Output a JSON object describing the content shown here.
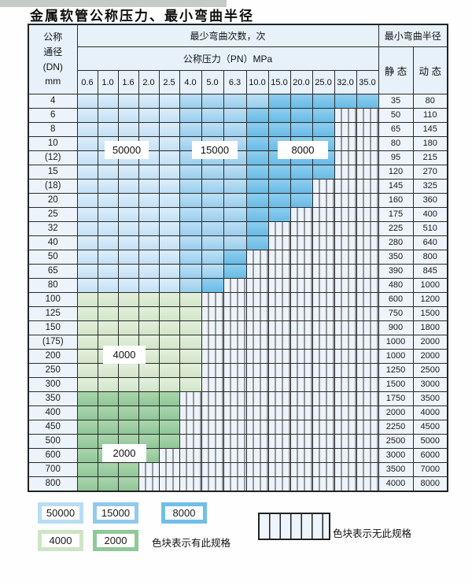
{
  "page": {
    "title": "金属软管公称压力、最小弯曲半径"
  },
  "table": {
    "corner_header": "公称\n通径\n(DN)\nmm",
    "bend_cycles_header": "最少弯曲次数，次",
    "pressure_header": "公称压力（PN）MPa",
    "radius_header": "最小弯曲半径",
    "static_label": "静 态",
    "dynamic_label": "动 态",
    "pressure_columns": [
      "0.6",
      "1.0",
      "1.6",
      "2.0",
      "2.5",
      "4.0",
      "5.0",
      "6.3",
      "10.0",
      "15.0",
      "20.0",
      "25.0",
      "32.0",
      "35.0"
    ],
    "rows": [
      {
        "dn": "4",
        "cells": "LLLLLMMMMDDDDD",
        "static": "35",
        "dynamic": "80"
      },
      {
        "dn": "6",
        "cells": "LLLLLMMMDDDDXX",
        "static": "50",
        "dynamic": "110"
      },
      {
        "dn": "8",
        "cells": "LLLLLMMMDDDDXX",
        "static": "65",
        "dynamic": "145"
      },
      {
        "dn": "10",
        "cells": "LLLLLMMMDDDDXX",
        "static": "80",
        "dynamic": "180"
      },
      {
        "dn": "(12)",
        "cells": "LLLLLMMMDDDDXX",
        "static": "95",
        "dynamic": "215"
      },
      {
        "dn": "15",
        "cells": "LLLLLMMMDDDDXX",
        "static": "120",
        "dynamic": "270"
      },
      {
        "dn": "(18)",
        "cells": "LLLLLMMMDDDXXX",
        "static": "145",
        "dynamic": "325"
      },
      {
        "dn": "20",
        "cells": "LLLLLMMMDDDXXX",
        "static": "160",
        "dynamic": "360"
      },
      {
        "dn": "25",
        "cells": "LLLLLMMMDDXXXX",
        "static": "175",
        "dynamic": "400"
      },
      {
        "dn": "32",
        "cells": "LLLLLMMMDXXXXX",
        "static": "225",
        "dynamic": "510"
      },
      {
        "dn": "40",
        "cells": "LLLLLMMMDXXXXX",
        "static": "280",
        "dynamic": "640"
      },
      {
        "dn": "50",
        "cells": "LLLLLMMDXXXXXX",
        "static": "350",
        "dynamic": "800"
      },
      {
        "dn": "65",
        "cells": "LLLLLMMDXXXXXX",
        "static": "390",
        "dynamic": "845"
      },
      {
        "dn": "80",
        "cells": "LLLLLMDXXXXXXX",
        "static": "480",
        "dynamic": "1000"
      },
      {
        "dn": "100",
        "cells": "GGGGGGXXXXXXXX",
        "static": "600",
        "dynamic": "1200"
      },
      {
        "dn": "125",
        "cells": "GGGGGGXXXXXXXX",
        "static": "750",
        "dynamic": "1500"
      },
      {
        "dn": "150",
        "cells": "GGGGGGXXXXXXXX",
        "static": "900",
        "dynamic": "1800"
      },
      {
        "dn": "(175)",
        "cells": "GGGGGGXXXXXXXX",
        "static": "1000",
        "dynamic": "2000"
      },
      {
        "dn": "200",
        "cells": "GGGGGGXXXXXXXX",
        "static": "1000",
        "dynamic": "2000"
      },
      {
        "dn": "250",
        "cells": "GGGGGGXXXXXXXX",
        "static": "1250",
        "dynamic": "2500"
      },
      {
        "dn": "300",
        "cells": "GGGGGGXXXXXXXX",
        "static": "1500",
        "dynamic": "3000"
      },
      {
        "dn": "350",
        "cells": "HHHHHXXXXXXXXX",
        "static": "1750",
        "dynamic": "3500"
      },
      {
        "dn": "400",
        "cells": "HHHHHXXXXXXXXX",
        "static": "2000",
        "dynamic": "4000"
      },
      {
        "dn": "450",
        "cells": "HHHHHXXXXXXXXX",
        "static": "2250",
        "dynamic": "4500"
      },
      {
        "dn": "500",
        "cells": "HHHHHXXXXXXXXX",
        "static": "2500",
        "dynamic": "5000"
      },
      {
        "dn": "600",
        "cells": "HHHHXXXXXXXXXX",
        "static": "3000",
        "dynamic": "6000"
      },
      {
        "dn": "700",
        "cells": "HHHXXXXXXXXXXX",
        "static": "3500",
        "dynamic": "7000"
      },
      {
        "dn": "800",
        "cells": "HHHXXXXXXXXXXX",
        "static": "4000",
        "dynamic": "8000"
      }
    ]
  },
  "zone_labels": {
    "z50000": "50000",
    "z15000": "15000",
    "z8000": "8000",
    "z4000": "4000",
    "z2000": "2000"
  },
  "cell_colors": {
    "L": {
      "zone": "50000",
      "hex": "#cde6f7"
    },
    "M": {
      "zone": "15000",
      "hex": "#a6d4f0"
    },
    "D": {
      "zone": "8000",
      "hex": "#74c0e8"
    },
    "G": {
      "zone": "4000",
      "hex": "#d9e9d2"
    },
    "H": {
      "zone": "2000",
      "hex": "#9bcc9e"
    },
    "X": {
      "zone": "no-spec",
      "hex": "striped"
    }
  },
  "legend": {
    "swatch_50000": "50000",
    "swatch_15000": "15000",
    "swatch_8000": "8000",
    "swatch_4000": "4000",
    "swatch_2000": "2000",
    "has_spec_text": "色块表示有此规格",
    "no_spec_text": "色块表示无此规格"
  },
  "chart_data": {
    "type": "table",
    "title": "金属软管公称压力、最小弯曲半径",
    "columns_pressure_MPa": [
      0.6,
      1.0,
      1.6,
      2.0,
      2.5,
      4.0,
      5.0,
      6.3,
      10.0,
      15.0,
      20.0,
      25.0,
      32.0,
      35.0
    ],
    "zone_meaning": {
      "L": "50000次",
      "M": "15000次",
      "D": "8000次",
      "G": "4000次",
      "H": "2000次",
      "X": "无此规格"
    },
    "rows": [
      {
        "dn_mm": "4",
        "zones": "LLLLLMMMMDDDDD",
        "min_bend_radius_static": 35,
        "min_bend_radius_dynamic": 80
      },
      {
        "dn_mm": "6",
        "zones": "LLLLLMMMDDDDXX",
        "min_bend_radius_static": 50,
        "min_bend_radius_dynamic": 110
      },
      {
        "dn_mm": "8",
        "zones": "LLLLLMMMDDDDXX",
        "min_bend_radius_static": 65,
        "min_bend_radius_dynamic": 145
      },
      {
        "dn_mm": "10",
        "zones": "LLLLLMMMDDDDXX",
        "min_bend_radius_static": 80,
        "min_bend_radius_dynamic": 180
      },
      {
        "dn_mm": "(12)",
        "zones": "LLLLLMMMDDDDXX",
        "min_bend_radius_static": 95,
        "min_bend_radius_dynamic": 215
      },
      {
        "dn_mm": "15",
        "zones": "LLLLLMMMDDDDXX",
        "min_bend_radius_static": 120,
        "min_bend_radius_dynamic": 270
      },
      {
        "dn_mm": "(18)",
        "zones": "LLLLLMMMDDDXXX",
        "min_bend_radius_static": 145,
        "min_bend_radius_dynamic": 325
      },
      {
        "dn_mm": "20",
        "zones": "LLLLLMMMDDDXXX",
        "min_bend_radius_static": 160,
        "min_bend_radius_dynamic": 360
      },
      {
        "dn_mm": "25",
        "zones": "LLLLLMMMDDXXXX",
        "min_bend_radius_static": 175,
        "min_bend_radius_dynamic": 400
      },
      {
        "dn_mm": "32",
        "zones": "LLLLLMMMDXXXXX",
        "min_bend_radius_static": 225,
        "min_bend_radius_dynamic": 510
      },
      {
        "dn_mm": "40",
        "zones": "LLLLLMMMDXXXXX",
        "min_bend_radius_static": 280,
        "min_bend_radius_dynamic": 640
      },
      {
        "dn_mm": "50",
        "zones": "LLLLLMMDXXXXXX",
        "min_bend_radius_static": 350,
        "min_bend_radius_dynamic": 800
      },
      {
        "dn_mm": "65",
        "zones": "LLLLLMMDXXXXXX",
        "min_bend_radius_static": 390,
        "min_bend_radius_dynamic": 845
      },
      {
        "dn_mm": "80",
        "zones": "LLLLLMDXXXXXXX",
        "min_bend_radius_static": 480,
        "min_bend_radius_dynamic": 1000
      },
      {
        "dn_mm": "100",
        "zones": "GGGGGGXXXXXXXX",
        "min_bend_radius_static": 600,
        "min_bend_radius_dynamic": 1200
      },
      {
        "dn_mm": "125",
        "zones": "GGGGGGXXXXXXXX",
        "min_bend_radius_static": 750,
        "min_bend_radius_dynamic": 1500
      },
      {
        "dn_mm": "150",
        "zones": "GGGGGGXXXXXXXX",
        "min_bend_radius_static": 900,
        "min_bend_radius_dynamic": 1800
      },
      {
        "dn_mm": "(175)",
        "zones": "GGGGGGXXXXXXXX",
        "min_bend_radius_static": 1000,
        "min_bend_radius_dynamic": 2000
      },
      {
        "dn_mm": "200",
        "zones": "GGGGGGXXXXXXXX",
        "min_bend_radius_static": 1000,
        "min_bend_radius_dynamic": 2000
      },
      {
        "dn_mm": "250",
        "zones": "GGGGGGXXXXXXXX",
        "min_bend_radius_static": 1250,
        "min_bend_radius_dynamic": 2500
      },
      {
        "dn_mm": "300",
        "zones": "GGGGGGXXXXXXXX",
        "min_bend_radius_static": 1500,
        "min_bend_radius_dynamic": 3000
      },
      {
        "dn_mm": "350",
        "zones": "HHHHHXXXXXXXXX",
        "min_bend_radius_static": 1750,
        "min_bend_radius_dynamic": 3500
      },
      {
        "dn_mm": "400",
        "zones": "HHHHHXXXXXXXXX",
        "min_bend_radius_static": 2000,
        "min_bend_radius_dynamic": 4000
      },
      {
        "dn_mm": "450",
        "zones": "HHHHHXXXXXXXXX",
        "min_bend_radius_static": 2250,
        "min_bend_radius_dynamic": 4500
      },
      {
        "dn_mm": "500",
        "zones": "HHHHHXXXXXXXXX",
        "min_bend_radius_static": 2500,
        "min_bend_radius_dynamic": 5000
      },
      {
        "dn_mm": "600",
        "zones": "HHHHXXXXXXXXXX",
        "min_bend_radius_static": 3000,
        "min_bend_radius_dynamic": 6000
      },
      {
        "dn_mm": "700",
        "zones": "HHHXXXXXXXXXXX",
        "min_bend_radius_static": 3500,
        "min_bend_radius_dynamic": 7000
      },
      {
        "dn_mm": "800",
        "zones": "HHHXXXXXXXXXXX",
        "min_bend_radius_static": 4000,
        "min_bend_radius_dynamic": 8000
      }
    ]
  }
}
